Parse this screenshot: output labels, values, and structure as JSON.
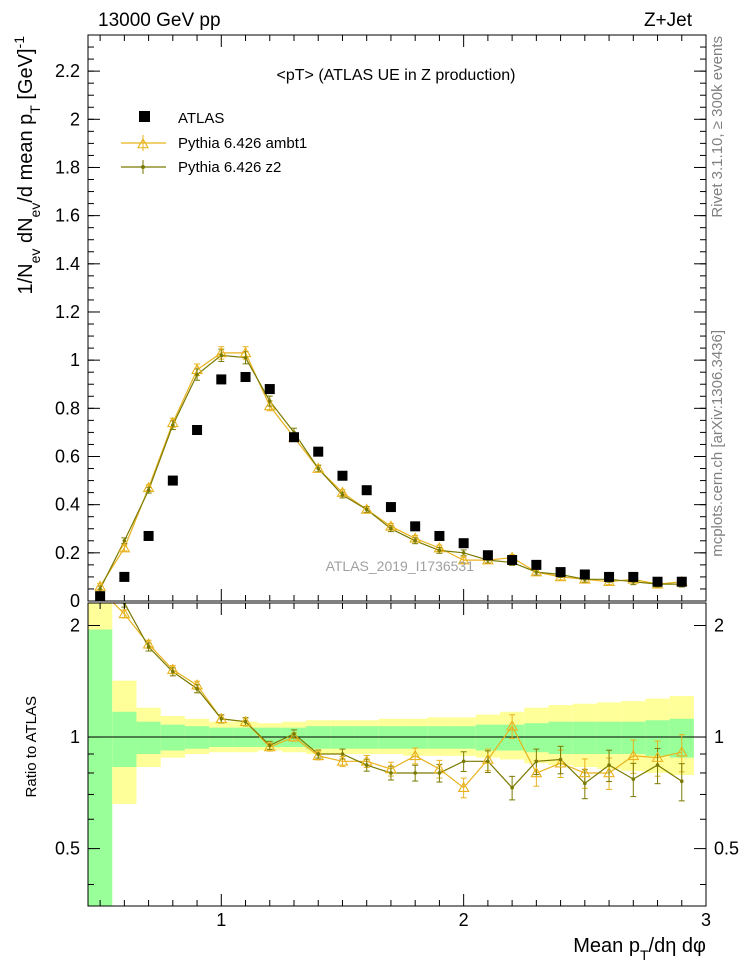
{
  "header": {
    "left": "13000 GeV pp",
    "right": "Z+Jet"
  },
  "side_labels": {
    "rivet": "Rivet 3.1.10, ≥ 300k events",
    "mcplots": "mcplots.cern.ch [arXiv:1306.3436]"
  },
  "watermark": "ATLAS_2019_I1736531",
  "colors": {
    "ambt1": "#e8b21c",
    "z2": "#7a7a00",
    "band_inner": "#99ff99",
    "band_outer": "#ffff99"
  },
  "chart_data": [
    {
      "type": "scatter",
      "title": "<pT> (ATLAS UE in Z production)",
      "ylabel": "1/N_ev dN_ev/d mean p_T [GeV]^-1",
      "xlim": [
        0.45,
        3.0
      ],
      "ylim": [
        0,
        2.35
      ],
      "yticks": [
        "0",
        "0.2",
        "0.4",
        "0.6",
        "0.8",
        "1",
        "1.2",
        "1.4",
        "1.6",
        "1.8",
        "2",
        "2.2"
      ],
      "x": [
        0.5,
        0.6,
        0.7,
        0.8,
        0.9,
        1.0,
        1.1,
        1.2,
        1.3,
        1.4,
        1.5,
        1.6,
        1.7,
        1.8,
        1.9,
        2.0,
        2.1,
        2.2,
        2.3,
        2.4,
        2.5,
        2.6,
        2.7,
        2.8,
        2.9
      ],
      "legend_placement": "top-left",
      "series": [
        {
          "name": "ATLAS",
          "values": [
            0.02,
            0.1,
            0.27,
            0.5,
            0.71,
            0.92,
            0.93,
            0.88,
            0.68,
            0.62,
            0.52,
            0.46,
            0.39,
            0.31,
            0.27,
            0.24,
            0.19,
            0.17,
            0.15,
            0.12,
            0.11,
            0.1,
            0.1,
            0.08,
            0.08
          ]
        },
        {
          "name": "Pythia 6.426 ambt1",
          "values": [
            0.06,
            0.22,
            0.47,
            0.74,
            0.96,
            1.03,
            1.03,
            0.81,
            0.68,
            0.55,
            0.45,
            0.38,
            0.31,
            0.26,
            0.22,
            0.17,
            0.17,
            0.18,
            0.12,
            0.1,
            0.09,
            0.08,
            0.09,
            0.07,
            0.08
          ]
        },
        {
          "name": "Pythia 6.426 z2",
          "values": [
            0.05,
            0.25,
            0.46,
            0.73,
            0.94,
            1.02,
            1.01,
            0.83,
            0.7,
            0.55,
            0.44,
            0.38,
            0.3,
            0.25,
            0.21,
            0.2,
            0.17,
            0.16,
            0.12,
            0.11,
            0.09,
            0.09,
            0.08,
            0.07,
            0.07
          ]
        }
      ]
    },
    {
      "type": "line",
      "ylabel": "Ratio to ATLAS",
      "xlabel": "Mean p_T/dη dφ",
      "xlim": [
        0.45,
        3.0
      ],
      "ylim": [
        0.35,
        2.3
      ],
      "xticks": [
        "1",
        "2",
        "3"
      ],
      "yticks": [
        "0.5",
        "1",
        "2"
      ],
      "x": [
        0.5,
        0.6,
        0.7,
        0.8,
        0.9,
        1.0,
        1.1,
        1.2,
        1.3,
        1.4,
        1.5,
        1.6,
        1.7,
        1.8,
        1.9,
        2.0,
        2.1,
        2.2,
        2.3,
        2.4,
        2.5,
        2.6,
        2.7,
        2.8,
        2.9
      ],
      "bands": {
        "inner_low": [
          0.3,
          0.83,
          0.9,
          0.92,
          0.93,
          0.94,
          0.94,
          0.94,
          0.94,
          0.93,
          0.93,
          0.93,
          0.93,
          0.93,
          0.93,
          0.93,
          0.92,
          0.92,
          0.91,
          0.9,
          0.9,
          0.9,
          0.9,
          0.89,
          0.88
        ],
        "inner_high": [
          1.95,
          1.17,
          1.1,
          1.08,
          1.07,
          1.06,
          1.06,
          1.06,
          1.06,
          1.07,
          1.07,
          1.07,
          1.07,
          1.07,
          1.07,
          1.07,
          1.08,
          1.08,
          1.09,
          1.1,
          1.1,
          1.1,
          1.1,
          1.11,
          1.12
        ],
        "outer_low": [
          0.3,
          0.66,
          0.83,
          0.88,
          0.9,
          0.91,
          0.91,
          0.92,
          0.91,
          0.9,
          0.9,
          0.9,
          0.9,
          0.89,
          0.89,
          0.89,
          0.88,
          0.87,
          0.85,
          0.84,
          0.83,
          0.82,
          0.81,
          0.8,
          0.79
        ],
        "outer_high": [
          2.3,
          1.42,
          1.2,
          1.14,
          1.12,
          1.1,
          1.1,
          1.09,
          1.1,
          1.11,
          1.11,
          1.11,
          1.12,
          1.12,
          1.13,
          1.13,
          1.15,
          1.17,
          1.2,
          1.22,
          1.23,
          1.24,
          1.25,
          1.27,
          1.29
        ]
      },
      "series": [
        {
          "name": "Pythia 6.426 ambt1",
          "values": [
            2.5,
            2.15,
            1.78,
            1.52,
            1.38,
            1.12,
            1.1,
            0.94,
            1.0,
            0.89,
            0.86,
            0.86,
            0.82,
            0.89,
            0.82,
            0.73,
            0.87,
            1.07,
            0.8,
            0.85,
            0.8,
            0.8,
            0.89,
            0.88,
            0.91
          ]
        },
        {
          "name": "Pythia 6.426 z2",
          "values": [
            2.5,
            2.3,
            1.75,
            1.5,
            1.35,
            1.12,
            1.1,
            0.95,
            1.02,
            0.9,
            0.9,
            0.84,
            0.8,
            0.8,
            0.8,
            0.86,
            0.86,
            0.73,
            0.86,
            0.87,
            0.75,
            0.84,
            0.77,
            0.84,
            0.76
          ]
        }
      ]
    }
  ]
}
